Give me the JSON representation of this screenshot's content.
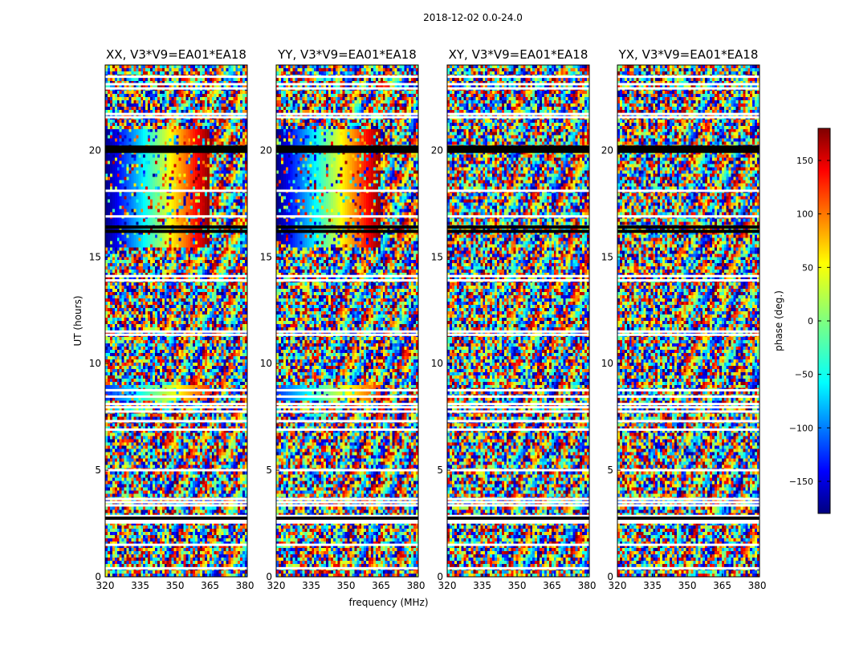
{
  "suptitle": "2018-12-02 0.0-24.0",
  "chart_data": {
    "type": "heatmap",
    "panels": [
      {
        "title": "XX, V3*V9=EA01*EA18",
        "pol": "XX"
      },
      {
        "title": "YY, V3*V9=EA01*EA18",
        "pol": "YY"
      },
      {
        "title": "XY, V3*V9=EA01*EA18",
        "pol": "XY"
      },
      {
        "title": "YX, V3*V9=EA01*EA18",
        "pol": "YX"
      }
    ],
    "xlabel": "frequency (MHz)",
    "ylabel": "UT (hours)",
    "xlim": [
      320,
      381
    ],
    "ylim": [
      0,
      24
    ],
    "xticks": [
      320,
      335,
      350,
      365,
      380
    ],
    "yticks": [
      0,
      5,
      10,
      15,
      20
    ],
    "colorbar": {
      "label": "phase (deg.)",
      "range": [
        -180,
        180
      ],
      "ticks": [
        150,
        100,
        50,
        0,
        -50,
        -100,
        -150
      ],
      "tick_labels": [
        "150",
        "100",
        "50",
        "0",
        "−50",
        "−100",
        "−150"
      ],
      "colormap": "jet"
    },
    "flagged_rows_hours": [
      0.4,
      1.5,
      2.55,
      2.65,
      2.85,
      3.35,
      3.5,
      3.65,
      5.0,
      6.9,
      7.3,
      7.75,
      7.95,
      8.1,
      8.45,
      8.75,
      11.35,
      11.5,
      13.9,
      14.1,
      16.9,
      18.1,
      21.55,
      21.7,
      22.9,
      23.1,
      23.45
    ],
    "black_rows_hours": [
      19.95,
      20.05,
      20.15,
      16.2,
      16.4,
      2.75
    ],
    "colored_bands": [
      {
        "panels": [
          "XX",
          "YY"
        ],
        "ut_range": [
          15.5,
          21.0
        ],
        "freq_range": [
          320,
          365
        ],
        "phase_start": -180,
        "phase_end": 180
      },
      {
        "panels": [
          "XX",
          "YY"
        ],
        "ut_range": [
          8.3,
          9.0
        ],
        "freq_range": [
          320,
          365
        ],
        "phase_start": -120,
        "phase_end": 120
      }
    ]
  }
}
